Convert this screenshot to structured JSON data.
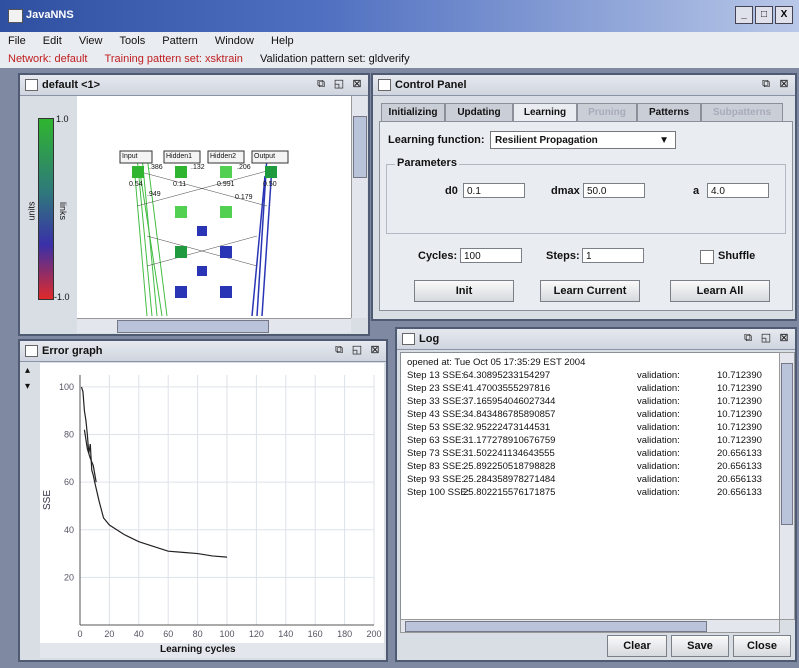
{
  "app": {
    "title": "JavaNNS"
  },
  "window_buttons": [
    "_",
    "□",
    "X"
  ],
  "menu": [
    "File",
    "Edit",
    "View",
    "Tools",
    "Pattern",
    "Window",
    "Help"
  ],
  "status": {
    "network": "Network: default",
    "training": "Training pattern set: xsktrain",
    "validation": "Validation pattern set: gldverify"
  },
  "network_window": {
    "title": "default <1>",
    "scale": {
      "top": "1.0",
      "bottom": "-1.0",
      "left_label": "units",
      "right_label": "links"
    },
    "headers": [
      "Input",
      "Hidden1",
      "Hidden2",
      "Output"
    ],
    "values": [
      "0.54",
      ".386",
      "0.11",
      ".132",
      "0.991",
      ".206",
      "0.50",
      ".949",
      "0.179"
    ]
  },
  "control_panel": {
    "title": "Control Panel",
    "tabs": [
      "Initializing",
      "Updating",
      "Learning",
      "Pruning",
      "Patterns",
      "Subpatterns"
    ],
    "learning_function_label": "Learning function:",
    "learning_function_value": "Resilient Propagation",
    "parameters_label": "Parameters",
    "param_labels": [
      "d0",
      "dmax",
      "a"
    ],
    "param_values": [
      "0.1",
      "50.0",
      "4.0"
    ],
    "cycles_label": "Cycles:",
    "cycles_value": "100",
    "steps_label": "Steps:",
    "steps_value": "1",
    "shuffle_label": "Shuffle",
    "buttons": [
      "Init",
      "Learn Current",
      "Learn All"
    ]
  },
  "error_graph": {
    "title": "Error graph",
    "xlabel": "Learning cycles",
    "ylabel": "SSE"
  },
  "chart_data": {
    "type": "line",
    "title": "Error graph",
    "xlabel": "Learning cycles",
    "ylabel": "SSE",
    "x_ticks": [
      0,
      20,
      40,
      60,
      80,
      100,
      120,
      140,
      160,
      180,
      200
    ],
    "y_ticks": [
      20,
      40,
      60,
      80,
      100
    ],
    "xlim": [
      0,
      200
    ],
    "ylim": [
      0,
      105
    ],
    "grid": true,
    "series": [
      {
        "x": [
          1,
          2,
          3,
          4,
          5,
          6,
          7,
          8,
          9,
          10,
          13,
          16,
          20,
          25,
          30,
          40,
          50,
          60,
          70,
          80,
          90,
          100
        ],
        "y": [
          100,
          98,
          90,
          86,
          80,
          72,
          76,
          65,
          63,
          60,
          52,
          45,
          42,
          40,
          38,
          35,
          33,
          31,
          30.5,
          30,
          29,
          28.5
        ]
      },
      {
        "x": [
          3,
          5,
          7,
          9,
          11
        ],
        "y": [
          82,
          74,
          70,
          67,
          60
        ]
      }
    ]
  },
  "log_window": {
    "title": "Log",
    "header": "opened at: Tue Oct 05 17:35:29 EST 2004",
    "lines": [
      {
        "step": "Step 13 SSE:",
        "sse": "64.30895233154297",
        "val": "validation:",
        "vnum": "10.712390"
      },
      {
        "step": "Step 23 SSE:",
        "sse": "41.47003555297816",
        "val": "validation:",
        "vnum": "10.712390"
      },
      {
        "step": "Step 33 SSE:",
        "sse": "37.165954046027344",
        "val": "validation:",
        "vnum": "10.712390"
      },
      {
        "step": "Step 43 SSE:",
        "sse": "34.843486785890857",
        "val": "validation:",
        "vnum": "10.712390"
      },
      {
        "step": "Step 53 SSE:",
        "sse": "32.95222473144531",
        "val": "validation:",
        "vnum": "10.712390"
      },
      {
        "step": "Step 63 SSE:",
        "sse": "31.177278910676759",
        "val": "validation:",
        "vnum": "10.712390"
      },
      {
        "step": "Step 73 SSE:",
        "sse": "31.502241134643555",
        "val": "validation:",
        "vnum": "20.656133"
      },
      {
        "step": "Step 83 SSE:",
        "sse": "25.892250518798828",
        "val": "validation:",
        "vnum": "20.656133"
      },
      {
        "step": "Step 93 SSE:",
        "sse": "25.284358978271484",
        "val": "validation:",
        "vnum": "20.656133"
      },
      {
        "step": "Step 100 SSE:",
        "sse": "25.802215576171875",
        "val": "validation:",
        "vnum": "20.656133"
      }
    ],
    "buttons": [
      "Clear",
      "Save",
      "Close"
    ]
  },
  "colors": {
    "positive": "#2fb52f",
    "negative": "#2a35b5",
    "title_bar": "#2f4fa0"
  }
}
